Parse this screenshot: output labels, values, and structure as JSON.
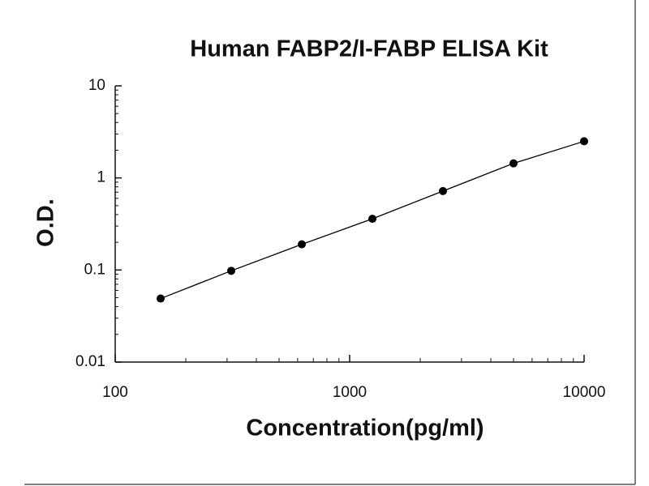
{
  "chart_data": {
    "type": "scatter",
    "title": "Human FABP2/I-FABP ELISA Kit",
    "x_label": "Concentration(pg/ml)",
    "y_label": "O.D.",
    "x": [
      156.25,
      312.5,
      625,
      1250,
      2500,
      5000,
      10000
    ],
    "series": [
      {
        "color": "#000000",
        "values": [
          0.049,
          0.098,
          0.19,
          0.36,
          0.72,
          1.44,
          2.5
        ]
      }
    ],
    "xscale": "log",
    "yscale": "log",
    "xlim": [
      100,
      10000
    ],
    "ylim": [
      0.01,
      10
    ],
    "xticks": [
      100,
      1000,
      10000
    ],
    "yticks": [
      0.01,
      0.1,
      1,
      10
    ],
    "connect_points": true
  }
}
